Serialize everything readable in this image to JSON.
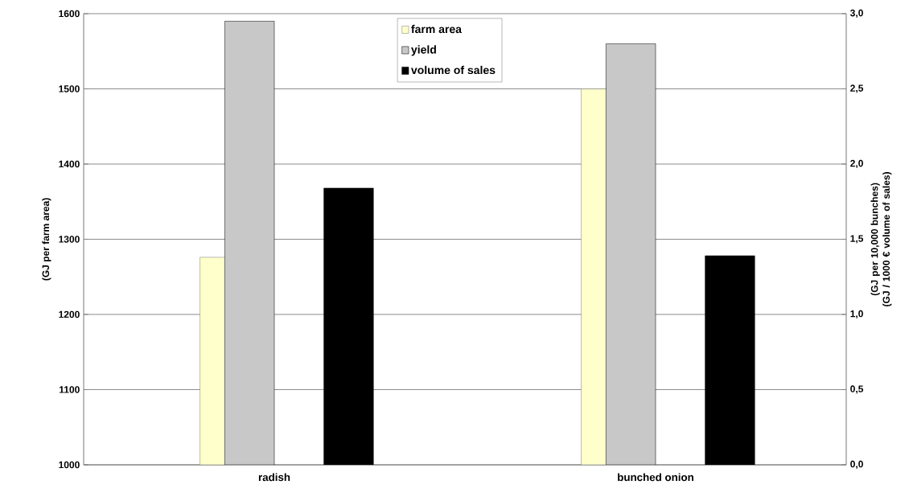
{
  "chart_data": {
    "type": "bar",
    "categories": [
      "radish",
      "bunched onion"
    ],
    "ylabel": "(GJ per farm area)",
    "y2label": "(GJ per 10,000 bunches)\n(GJ / 1000 € volume of sales)",
    "series": [
      {
        "name": "farm area",
        "color": "#ffffcc",
        "values": [
          1276,
          1500
        ]
      },
      {
        "name": "yield",
        "color": "#c8c8c8",
        "values": [
          2.95,
          2.8
        ],
        "axis": "y2"
      },
      {
        "name": "volume of sales",
        "color": "#000000",
        "values": [
          1.84,
          1.39
        ],
        "axis": "y2"
      }
    ],
    "ylim": [
      1000,
      1600
    ],
    "yticks": [
      1000,
      1100,
      1200,
      1300,
      1400,
      1500,
      1600
    ],
    "y2lim": [
      0,
      3
    ],
    "y2ticks": [
      {
        "value": 0,
        "label": "0,0"
      },
      {
        "value": 0.5,
        "label": "0,5"
      },
      {
        "value": 1,
        "label": "1,0"
      },
      {
        "value": 1.5,
        "label": "1,5"
      },
      {
        "value": 2,
        "label": "2,0"
      },
      {
        "value": 2.5,
        "label": "2,5"
      },
      {
        "value": 3,
        "label": "3,0"
      }
    ],
    "grid": "y",
    "legend": "top"
  }
}
